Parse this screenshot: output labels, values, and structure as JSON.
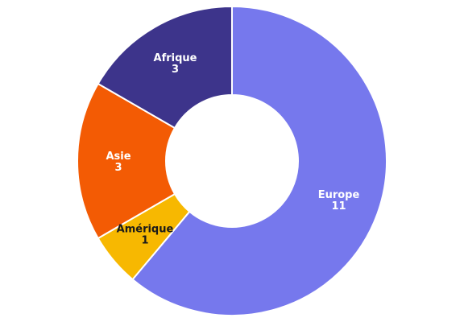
{
  "chart_data": {
    "type": "pie",
    "variant": "donut",
    "title": "",
    "slices": [
      {
        "label": "Europe",
        "value": 11,
        "color": "#7678ed",
        "text_color": "#ffffff"
      },
      {
        "label": "Amérique",
        "value": 1,
        "color": "#f7b801",
        "text_color": "#1a1a1a"
      },
      {
        "label": "Asie",
        "value": 3,
        "color": "#f35b04",
        "text_color": "#ffffff"
      },
      {
        "label": "Afrique",
        "value": 3,
        "color": "#3d348b",
        "text_color": "#ffffff"
      }
    ]
  }
}
